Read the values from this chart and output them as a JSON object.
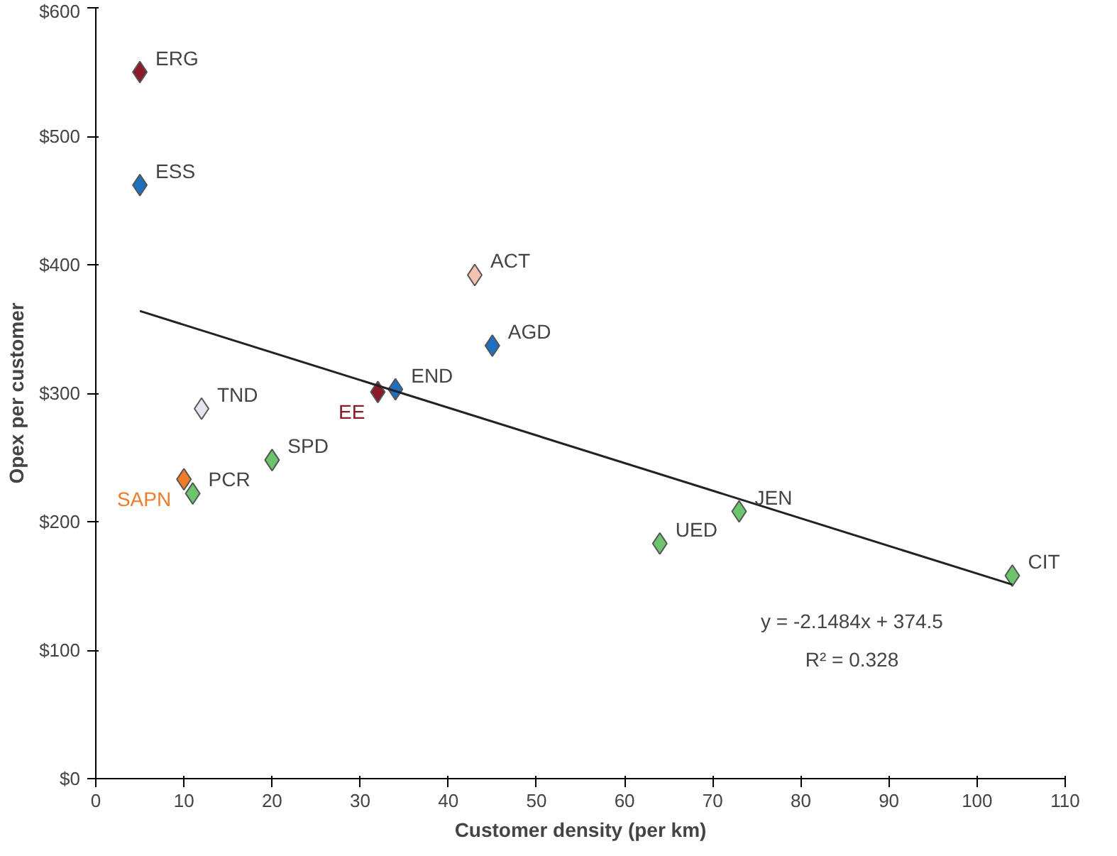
{
  "chart_data": {
    "type": "scatter",
    "xlabel": "Customer density (per km)",
    "ylabel": "Opex per customer",
    "marker": "diamond",
    "grid": false,
    "xlim": [
      0,
      110
    ],
    "xticks": [
      0,
      10,
      20,
      30,
      40,
      50,
      60,
      70,
      80,
      90,
      100,
      110
    ],
    "ylim": [
      0,
      600
    ],
    "yticks": [
      {
        "value": 0,
        "label": "$0"
      },
      {
        "value": 100,
        "label": "$100"
      },
      {
        "value": 200,
        "label": "$200"
      },
      {
        "value": 300,
        "label": "$300"
      },
      {
        "value": 400,
        "label": "$400"
      },
      {
        "value": 500,
        "label": "$500"
      },
      {
        "value": 600,
        "label": "$600"
      }
    ],
    "series": [
      {
        "name": "ERG",
        "color": "#8b1a2b",
        "x": [
          5
        ],
        "values": [
          550
        ]
      },
      {
        "name": "ESS",
        "color": "#1f6fbf",
        "x": [
          5
        ],
        "values": [
          462
        ]
      },
      {
        "name": "ACT",
        "color": "#f4c0b0",
        "x": [
          43
        ],
        "values": [
          392
        ]
      },
      {
        "name": "AGD",
        "color": "#1f6fbf",
        "x": [
          45
        ],
        "values": [
          337
        ]
      },
      {
        "name": "TND",
        "color": "#e4e4f0",
        "x": [
          12
        ],
        "values": [
          288
        ]
      },
      {
        "name": "EE",
        "color": "#8b1a2b",
        "x": [
          32
        ],
        "values": [
          301
        ]
      },
      {
        "name": "END",
        "color": "#1f6fbf",
        "x": [
          34
        ],
        "values": [
          303
        ]
      },
      {
        "name": "SPD",
        "color": "#6cc46c",
        "x": [
          20
        ],
        "values": [
          248
        ]
      },
      {
        "name": "SAPN",
        "color": "#f07c2a",
        "x": [
          10
        ],
        "values": [
          233
        ]
      },
      {
        "name": "PCR",
        "color": "#6cc46c",
        "x": [
          11
        ],
        "values": [
          222
        ]
      },
      {
        "name": "UED",
        "color": "#6cc46c",
        "x": [
          64
        ],
        "values": [
          183
        ]
      },
      {
        "name": "JEN",
        "color": "#6cc46c",
        "x": [
          73
        ],
        "values": [
          208
        ]
      },
      {
        "name": "CIT",
        "color": "#6cc46c",
        "x": [
          104
        ],
        "values": [
          158
        ]
      },
      {
        "type": "line",
        "marker": "none",
        "color": "#222222",
        "x": [
          5,
          104
        ],
        "values": [
          364,
          151
        ]
      }
    ],
    "annotations": [
      "y = -2.1484x + 374.5",
      "R² = 0.328"
    ]
  }
}
